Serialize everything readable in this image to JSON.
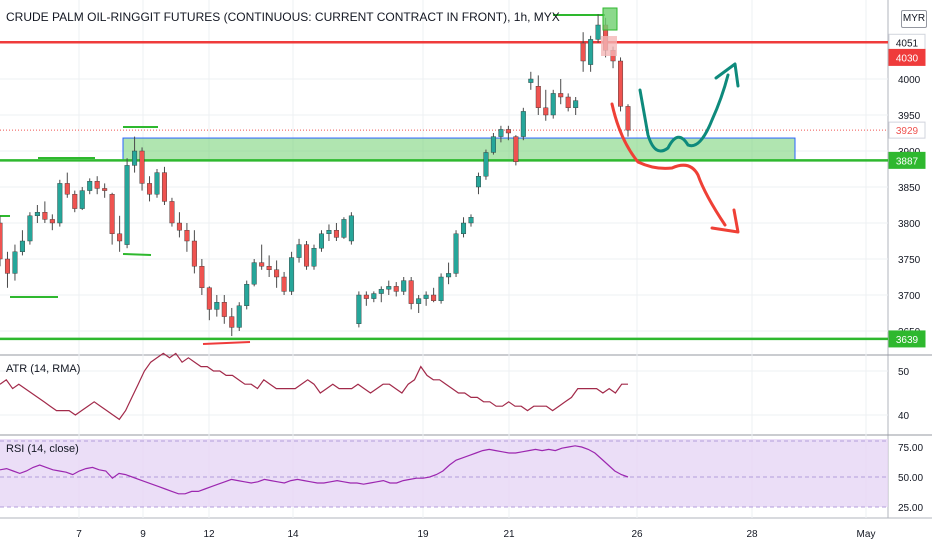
{
  "title": "CRUDE PALM OIL-RINGGIT FUTURES (CONTINUOUS: CURRENT CONTRACT IN FRONT), 1h, MYX",
  "currency_badge": "MYR",
  "colors": {
    "up": "#26a69a",
    "down": "#ef5350",
    "resistance": "#ef3b3b",
    "support": "#2eb82e",
    "zone_fill": "#6fcf6f",
    "zone_border": "#2962ff",
    "indicator": "#a22a4a",
    "rsi_band": "#e6d6f5",
    "arrow_up": "#0e8a7c",
    "arrow_down": "#ef4036"
  },
  "chart_data": [
    {
      "type": "candlestick",
      "title": "CRUDE PALM OIL-RINGGIT FUTURES (CONTINUOUS: CURRENT CONTRACT IN FRONT), 1h, MYX",
      "x_tick_labels": [
        "7",
        "9",
        "12",
        "14",
        "19",
        "21",
        "26",
        "28",
        "May"
      ],
      "y_ticks": [
        3650,
        3700,
        3750,
        3800,
        3850,
        3900,
        3950,
        4000
      ],
      "ylim": [
        3610,
        4100
      ],
      "price_labels": [
        {
          "text": "4051",
          "value": 4051,
          "color": "#131722",
          "bg": "#ffffff"
        },
        {
          "text": "4030",
          "value": 4030,
          "color": "#ffffff",
          "bg": "#ef3b3b"
        },
        {
          "text": "3929",
          "value": 3929,
          "color": "#ef5350",
          "bg": "#ffffff"
        },
        {
          "text": "3887",
          "value": 3887,
          "color": "#ffffff",
          "bg": "#2eb82e"
        },
        {
          "text": "3639",
          "value": 3639,
          "color": "#ffffff",
          "bg": "#2eb82e"
        }
      ],
      "levels": {
        "resistance": 4051,
        "support": 3887,
        "lower_support": 3639,
        "last": 3929
      },
      "zone": {
        "low": 3887,
        "high": 3918
      },
      "candles": [
        [
          3800,
          3810,
          3740,
          3750
        ],
        [
          3750,
          3760,
          3710,
          3730
        ],
        [
          3730,
          3770,
          3720,
          3760
        ],
        [
          3760,
          3790,
          3755,
          3775
        ],
        [
          3775,
          3815,
          3770,
          3810
        ],
        [
          3810,
          3825,
          3800,
          3815
        ],
        [
          3815,
          3830,
          3800,
          3805
        ],
        [
          3805,
          3812,
          3790,
          3800
        ],
        [
          3800,
          3860,
          3795,
          3855
        ],
        [
          3855,
          3870,
          3835,
          3840
        ],
        [
          3840,
          3845,
          3815,
          3820
        ],
        [
          3820,
          3850,
          3818,
          3845
        ],
        [
          3845,
          3862,
          3840,
          3858
        ],
        [
          3858,
          3865,
          3840,
          3848
        ],
        [
          3848,
          3855,
          3835,
          3845
        ],
        [
          3840,
          3842,
          3770,
          3785
        ],
        [
          3785,
          3810,
          3760,
          3775
        ],
        [
          3770,
          3890,
          3765,
          3880
        ],
        [
          3880,
          3920,
          3870,
          3900
        ],
        [
          3900,
          3905,
          3845,
          3855
        ],
        [
          3855,
          3865,
          3830,
          3840
        ],
        [
          3840,
          3875,
          3835,
          3870
        ],
        [
          3870,
          3878,
          3825,
          3830
        ],
        [
          3830,
          3835,
          3795,
          3800
        ],
        [
          3800,
          3815,
          3780,
          3790
        ],
        [
          3790,
          3800,
          3760,
          3775
        ],
        [
          3775,
          3790,
          3730,
          3740
        ],
        [
          3740,
          3750,
          3700,
          3710
        ],
        [
          3710,
          3712,
          3665,
          3680
        ],
        [
          3680,
          3700,
          3670,
          3690
        ],
        [
          3690,
          3700,
          3660,
          3670
        ],
        [
          3670,
          3682,
          3643,
          3655
        ],
        [
          3655,
          3690,
          3650,
          3685
        ],
        [
          3685,
          3720,
          3680,
          3715
        ],
        [
          3715,
          3750,
          3712,
          3745
        ],
        [
          3745,
          3770,
          3735,
          3740
        ],
        [
          3740,
          3755,
          3725,
          3735
        ],
        [
          3735,
          3748,
          3710,
          3725
        ],
        [
          3725,
          3732,
          3700,
          3705
        ],
        [
          3705,
          3760,
          3700,
          3752
        ],
        [
          3752,
          3778,
          3745,
          3770
        ],
        [
          3770,
          3775,
          3735,
          3740
        ],
        [
          3740,
          3770,
          3735,
          3765
        ],
        [
          3765,
          3790,
          3760,
          3785
        ],
        [
          3785,
          3798,
          3775,
          3790
        ],
        [
          3790,
          3800,
          3775,
          3780
        ],
        [
          3780,
          3808,
          3778,
          3805
        ],
        [
          3775,
          3815,
          3770,
          3810
        ],
        [
          3660,
          3705,
          3655,
          3700
        ],
        [
          3700,
          3705,
          3685,
          3695
        ],
        [
          3695,
          3705,
          3690,
          3702
        ],
        [
          3702,
          3712,
          3690,
          3708
        ],
        [
          3708,
          3720,
          3700,
          3712
        ],
        [
          3712,
          3718,
          3698,
          3705
        ],
        [
          3705,
          3725,
          3700,
          3720
        ],
        [
          3720,
          3725,
          3680,
          3688
        ],
        [
          3688,
          3700,
          3675,
          3695
        ],
        [
          3695,
          3705,
          3685,
          3700
        ],
        [
          3700,
          3710,
          3690,
          3692
        ],
        [
          3692,
          3730,
          3688,
          3725
        ],
        [
          3725,
          3745,
          3715,
          3730
        ],
        [
          3730,
          3790,
          3725,
          3785
        ],
        [
          3785,
          3808,
          3780,
          3800
        ],
        [
          3800,
          3812,
          3795,
          3808
        ],
        [
          3850,
          3870,
          3840,
          3865
        ],
        [
          3865,
          3902,
          3860,
          3898
        ],
        [
          3898,
          3925,
          3895,
          3920
        ],
        [
          3920,
          3935,
          3912,
          3930
        ],
        [
          3930,
          3935,
          3915,
          3925
        ],
        [
          3920,
          3922,
          3880,
          3885
        ],
        [
          3920,
          3960,
          3915,
          3955
        ],
        [
          3995,
          4010,
          3985,
          4000
        ],
        [
          3990,
          4005,
          3950,
          3960
        ],
        [
          3960,
          3985,
          3942,
          3950
        ],
        [
          3950,
          3985,
          3945,
          3980
        ],
        [
          3980,
          4000,
          3965,
          3975
        ],
        [
          3975,
          3980,
          3955,
          3960
        ],
        [
          3960,
          3975,
          3950,
          3970
        ],
        [
          4050,
          4065,
          4010,
          4025
        ],
        [
          4020,
          4060,
          4010,
          4055
        ],
        [
          4055,
          4090,
          4050,
          4075
        ],
        [
          4075,
          4085,
          4030,
          4040
        ],
        [
          4040,
          4045,
          4015,
          4025
        ],
        [
          4025,
          4030,
          3955,
          3962
        ],
        [
          3962,
          3965,
          3920,
          3929
        ]
      ]
    },
    {
      "type": "line",
      "title": "ATR (14, RMA)",
      "y_ticks": [
        40,
        50
      ],
      "ylim": [
        35,
        56
      ],
      "values": [
        47,
        48,
        46,
        47,
        46,
        45,
        44,
        43,
        42,
        41,
        41,
        41,
        40,
        41,
        42,
        43,
        42,
        41,
        40,
        39,
        41,
        44,
        47,
        50,
        52,
        53,
        54,
        53,
        54,
        52,
        53,
        52,
        51,
        51,
        50,
        50,
        49,
        49,
        48,
        47,
        47,
        46,
        48,
        47,
        46,
        46,
        46,
        46,
        47,
        48,
        47,
        45,
        46,
        47,
        46,
        46,
        46,
        47,
        46,
        45,
        46,
        47,
        47,
        46,
        45,
        47,
        48,
        51,
        49,
        48,
        48,
        47,
        46,
        45,
        45,
        44,
        44,
        43,
        43,
        42,
        42,
        43,
        42,
        42,
        41,
        42,
        42,
        42,
        41,
        42,
        43,
        44,
        46,
        46,
        46,
        46,
        45,
        46,
        45,
        47,
        47
      ]
    },
    {
      "type": "line",
      "title": "RSI (14, close)",
      "y_ticks": [
        25,
        50,
        75
      ],
      "ylim": [
        18,
        82
      ],
      "band": [
        30,
        70
      ],
      "values": [
        56,
        57,
        55,
        53,
        55,
        58,
        60,
        58,
        56,
        55,
        54,
        52,
        55,
        57,
        58,
        56,
        55,
        49,
        53,
        52,
        50,
        48,
        46,
        44,
        42,
        40,
        38,
        36,
        36,
        38,
        38,
        40,
        42,
        44,
        46,
        48,
        47,
        46,
        45,
        46,
        48,
        47,
        46,
        45,
        47,
        48,
        47,
        46,
        45,
        45,
        46,
        47,
        46,
        45,
        45,
        44,
        45,
        46,
        47,
        45,
        45,
        47,
        48,
        49,
        49,
        50,
        52,
        55,
        60,
        64,
        66,
        68,
        70,
        72,
        73,
        72,
        71,
        70,
        70,
        71,
        72,
        73,
        72,
        73,
        72,
        74,
        75,
        76,
        75,
        73,
        70,
        65,
        60,
        55,
        52,
        50
      ]
    }
  ]
}
